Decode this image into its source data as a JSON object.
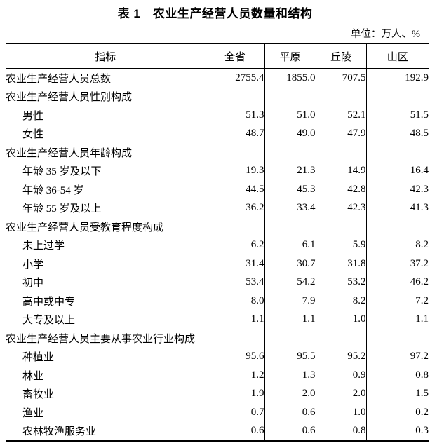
{
  "page": {
    "title": "表 1　农业生产经营人员数量和结构",
    "unit_note": "单位：万人、%"
  },
  "table": {
    "columns": [
      "指标",
      "全省",
      "平原",
      "丘陵",
      "山区"
    ],
    "rows": [
      {
        "label": "农业生产经营人员总数",
        "indent": 0,
        "values": [
          "2755.4",
          "1855.0",
          "707.5",
          "192.9"
        ]
      },
      {
        "label": "农业生产经营人员性别构成",
        "indent": 0,
        "values": [
          "",
          "",
          "",
          ""
        ]
      },
      {
        "label": "男性",
        "indent": 1,
        "values": [
          "51.3",
          "51.0",
          "52.1",
          "51.5"
        ]
      },
      {
        "label": "女性",
        "indent": 1,
        "values": [
          "48.7",
          "49.0",
          "47.9",
          "48.5"
        ]
      },
      {
        "label": "农业生产经营人员年龄构成",
        "indent": 0,
        "values": [
          "",
          "",
          "",
          ""
        ]
      },
      {
        "label": "年龄 35 岁及以下",
        "indent": 1,
        "values": [
          "19.3",
          "21.3",
          "14.9",
          "16.4"
        ]
      },
      {
        "label": "年龄 36-54 岁",
        "indent": 1,
        "values": [
          "44.5",
          "45.3",
          "42.8",
          "42.3"
        ]
      },
      {
        "label": "年龄 55 岁及以上",
        "indent": 1,
        "values": [
          "36.2",
          "33.4",
          "42.3",
          "41.3"
        ]
      },
      {
        "label": "农业生产经营人员受教育程度构成",
        "indent": 0,
        "values": [
          "",
          "",
          "",
          ""
        ]
      },
      {
        "label": "未上过学",
        "indent": 1,
        "values": [
          "6.2",
          "6.1",
          "5.9",
          "8.2"
        ]
      },
      {
        "label": "小学",
        "indent": 1,
        "values": [
          "31.4",
          "30.7",
          "31.8",
          "37.2"
        ]
      },
      {
        "label": "初中",
        "indent": 1,
        "values": [
          "53.4",
          "54.2",
          "53.2",
          "46.2"
        ]
      },
      {
        "label": "高中或中专",
        "indent": 1,
        "values": [
          "8.0",
          "7.9",
          "8.2",
          "7.2"
        ]
      },
      {
        "label": "大专及以上",
        "indent": 1,
        "values": [
          "1.1",
          "1.1",
          "1.0",
          "1.1"
        ]
      },
      {
        "label": "农业生产经营人员主要从事农业行业构成",
        "indent": 0,
        "values": [
          "",
          "",
          "",
          ""
        ]
      },
      {
        "label": "种植业",
        "indent": 1,
        "values": [
          "95.6",
          "95.5",
          "95.2",
          "97.2"
        ]
      },
      {
        "label": "林业",
        "indent": 1,
        "values": [
          "1.2",
          "1.3",
          "0.9",
          "0.8"
        ]
      },
      {
        "label": "畜牧业",
        "indent": 1,
        "values": [
          "1.9",
          "2.0",
          "2.0",
          "1.5"
        ]
      },
      {
        "label": "渔业",
        "indent": 1,
        "values": [
          "0.7",
          "0.6",
          "1.0",
          "0.2"
        ]
      },
      {
        "label": "农林牧渔服务业",
        "indent": 1,
        "values": [
          "0.6",
          "0.6",
          "0.8",
          "0.3"
        ]
      }
    ]
  }
}
